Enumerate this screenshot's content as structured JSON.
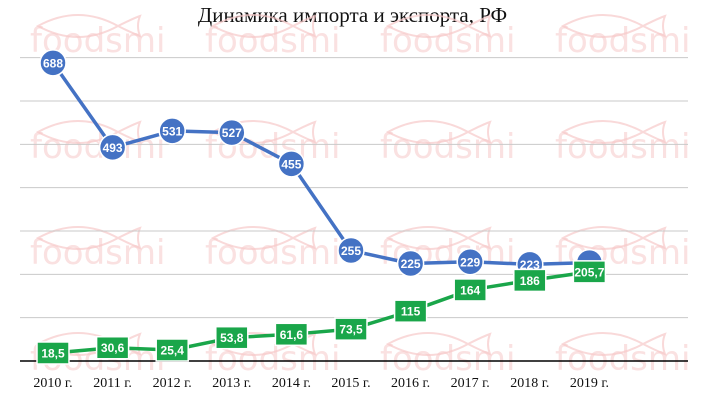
{
  "chart_data": {
    "type": "line",
    "title": "Динамика импорта и экспорта, РФ",
    "categories": [
      "2010 г.",
      "2011 г.",
      "2012 г.",
      "2013 г.",
      "2014 г.",
      "2015 г.",
      "2016 г.",
      "2017 г.",
      "2018 г.",
      "2019 г."
    ],
    "series": [
      {
        "values": [
          688,
          493,
          531,
          527,
          455,
          255,
          225,
          229,
          223,
          227
        ],
        "labels": [
          "688",
          "493",
          "531",
          "527",
          "455",
          "255",
          "225",
          "229",
          "223",
          ""
        ],
        "color": "#4472c4",
        "marker": "circle"
      },
      {
        "values": [
          18.5,
          30.6,
          25.4,
          53.8,
          61.6,
          73.5,
          115,
          164,
          186,
          205.7
        ],
        "labels": [
          "18,5",
          "30,6",
          "25,4",
          "53,8",
          "61,6",
          "73,5",
          "115",
          "164",
          "186",
          "205,7"
        ],
        "color": "#1aa64a",
        "marker": "square"
      }
    ],
    "ylim": [
      0,
      750
    ],
    "grid": true,
    "legend": "none"
  },
  "watermark": {
    "text": "foodsmi",
    "color": "#f4b8b8"
  },
  "colors": {
    "import": "#4472c4",
    "export": "#1aa64a",
    "grid": "#c9c9c9",
    "axis": "#000000"
  }
}
